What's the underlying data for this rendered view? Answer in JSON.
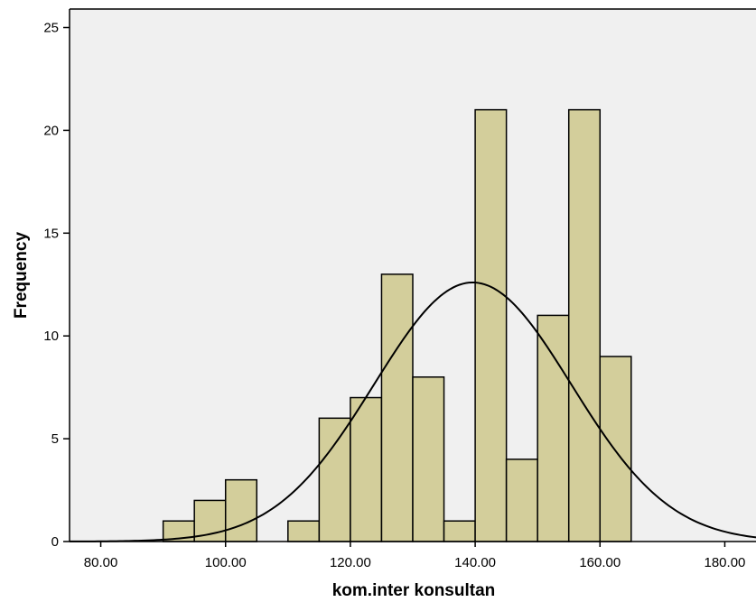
{
  "chart_data": {
    "type": "bar",
    "subtype": "histogram",
    "xlabel": "kom.inter konsultan",
    "ylabel": "Frequency",
    "xlim": [
      75,
      185
    ],
    "ylim": [
      0,
      25.9
    ],
    "x_ticks": [
      80,
      100,
      120,
      140,
      160,
      180
    ],
    "x_tick_labels": [
      "80.00",
      "100.00",
      "120.00",
      "140.00",
      "160.00",
      "180.00"
    ],
    "y_ticks": [
      0,
      5,
      10,
      15,
      20,
      25
    ],
    "y_tick_labels": [
      "0",
      "5",
      "10",
      "15",
      "20",
      "25"
    ],
    "bin_width": 5,
    "bins": [
      {
        "start": 90,
        "end": 95,
        "count": 1
      },
      {
        "start": 95,
        "end": 100,
        "count": 2
      },
      {
        "start": 100,
        "end": 105,
        "count": 3
      },
      {
        "start": 105,
        "end": 110,
        "count": 0
      },
      {
        "start": 110,
        "end": 115,
        "count": 1
      },
      {
        "start": 115,
        "end": 120,
        "count": 6
      },
      {
        "start": 120,
        "end": 125,
        "count": 7
      },
      {
        "start": 125,
        "end": 130,
        "count": 13
      },
      {
        "start": 130,
        "end": 135,
        "count": 8
      },
      {
        "start": 135,
        "end": 140,
        "count": 1
      },
      {
        "start": 140,
        "end": 145,
        "count": 21
      },
      {
        "start": 145,
        "end": 150,
        "count": 4
      },
      {
        "start": 150,
        "end": 155,
        "count": 11
      },
      {
        "start": 155,
        "end": 160,
        "count": 21
      },
      {
        "start": 160,
        "end": 165,
        "count": 9
      }
    ],
    "normal_curve": {
      "mean": 139.6,
      "sd": 15.8,
      "peak": 12.6
    },
    "grid": false,
    "colors": {
      "bar_fill": "#D3CE9B",
      "bar_stroke": "#000000",
      "plot_background": "#F0F0F0",
      "curve": "#000000"
    }
  }
}
